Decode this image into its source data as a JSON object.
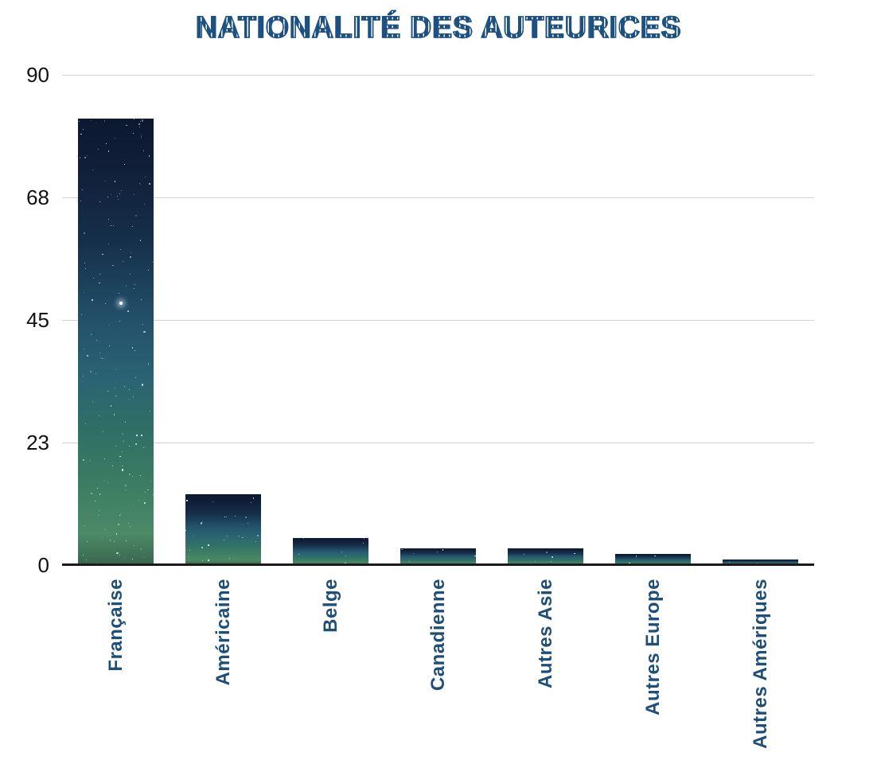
{
  "chart_data": {
    "type": "bar",
    "title": "NATIONALITÉ DES AUTEURICES",
    "categories": [
      "Française",
      "Américaine",
      "Belge",
      "Canadienne",
      "Autres Asie",
      "Autres Europe",
      "Autres Amériques"
    ],
    "values": [
      82,
      13,
      5,
      3,
      3,
      2,
      1
    ],
    "xlabel": "",
    "ylabel": "",
    "ylim": [
      0,
      90
    ],
    "yticks": [
      {
        "value": 0,
        "label": "0"
      },
      {
        "value": 22.5,
        "label": "23"
      },
      {
        "value": 45,
        "label": "45"
      },
      {
        "value": 67.5,
        "label": "68"
      },
      {
        "value": 90,
        "label": "90"
      }
    ],
    "grid": true,
    "legend_position": "none",
    "x_label_rotation_degrees": -90,
    "bar_fill": "starry-night-sky-texture"
  },
  "colors": {
    "title_blue": "#1d5181",
    "category_label_blue": "#1f4e79",
    "tick_label_color": "#111111",
    "gridline": "#d3d3d3",
    "axis_line": "#1a1a1a",
    "background": "#ffffff",
    "star_color": "#ffffff",
    "bar_gradient_stops": [
      "#0b1830 0%",
      "#111f3a 12%",
      "#16304a 28%",
      "#23506a 45%",
      "#2b6373 58%",
      "#2f6f66 70%",
      "#3f7f63 84%",
      "#4c8a66 93%",
      "#3a6550 100%"
    ]
  }
}
